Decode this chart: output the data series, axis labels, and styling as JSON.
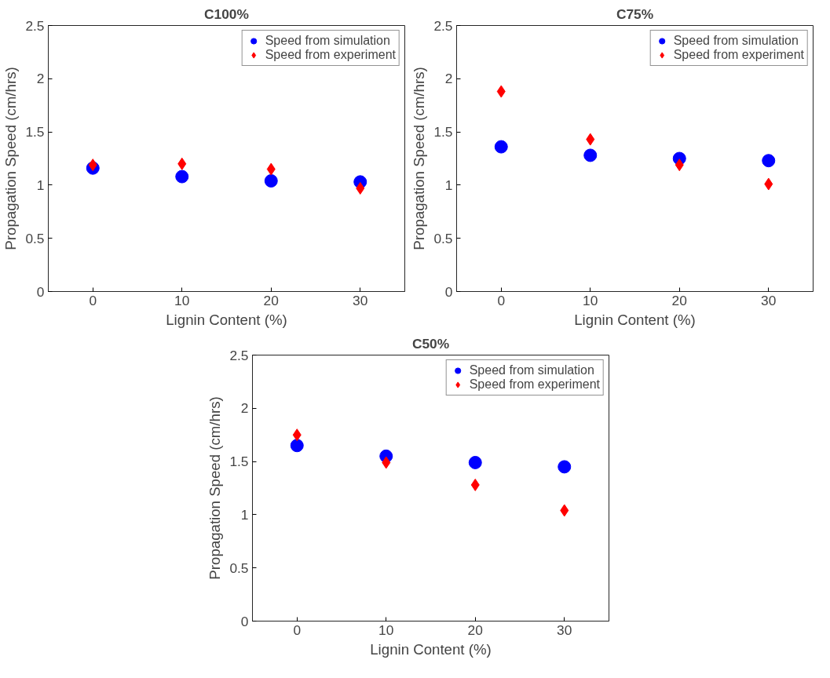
{
  "chart_data": [
    {
      "type": "scatter",
      "title": "C100%",
      "xlabel": "Lignin Content (%)",
      "ylabel": "Propagation Speed (cm/hrs)",
      "x": [
        0,
        10,
        20,
        30
      ],
      "xlim": [
        -5,
        35
      ],
      "xticks": [
        0,
        10,
        20,
        30
      ],
      "ylim": [
        0,
        2.5
      ],
      "yticks": [
        0,
        0.5,
        1,
        1.5,
        2,
        2.5
      ],
      "grid": false,
      "legend": "top right",
      "series": [
        {
          "name": "Speed from simulation",
          "color": "#0000ff",
          "marker": "circle",
          "values": [
            1.16,
            1.08,
            1.04,
            1.03
          ]
        },
        {
          "name": "Speed from experiment",
          "color": "#ff0000",
          "marker": "diamond",
          "values": [
            1.19,
            1.2,
            1.15,
            0.97
          ]
        }
      ]
    },
    {
      "type": "scatter",
      "title": "C75%",
      "xlabel": "Lignin Content (%)",
      "ylabel": "Propagation Speed (cm/hrs)",
      "x": [
        0,
        10,
        20,
        30
      ],
      "xlim": [
        -5,
        35
      ],
      "xticks": [
        0,
        10,
        20,
        30
      ],
      "ylim": [
        0,
        2.5
      ],
      "yticks": [
        0,
        0.5,
        1,
        1.5,
        2,
        2.5
      ],
      "grid": false,
      "legend": "top right",
      "series": [
        {
          "name": "Speed from simulation",
          "color": "#0000ff",
          "marker": "circle",
          "values": [
            1.36,
            1.28,
            1.25,
            1.23
          ]
        },
        {
          "name": "Speed from experiment",
          "color": "#ff0000",
          "marker": "diamond",
          "values": [
            1.88,
            1.43,
            1.19,
            1.01
          ]
        }
      ]
    },
    {
      "type": "scatter",
      "title": "C50%",
      "xlabel": "Lignin Content (%)",
      "ylabel": "Propagation Speed (cm/hrs)",
      "x": [
        0,
        10,
        20,
        30
      ],
      "xlim": [
        -5,
        35
      ],
      "xticks": [
        0,
        10,
        20,
        30
      ],
      "ylim": [
        0,
        2.5
      ],
      "yticks": [
        0,
        0.5,
        1,
        1.5,
        2,
        2.5
      ],
      "grid": false,
      "legend": "top right",
      "series": [
        {
          "name": "Speed from simulation",
          "color": "#0000ff",
          "marker": "circle",
          "values": [
            1.65,
            1.55,
            1.49,
            1.45
          ]
        },
        {
          "name": "Speed from experiment",
          "color": "#ff0000",
          "marker": "diamond",
          "values": [
            1.75,
            1.49,
            1.28,
            1.04
          ]
        }
      ]
    }
  ]
}
